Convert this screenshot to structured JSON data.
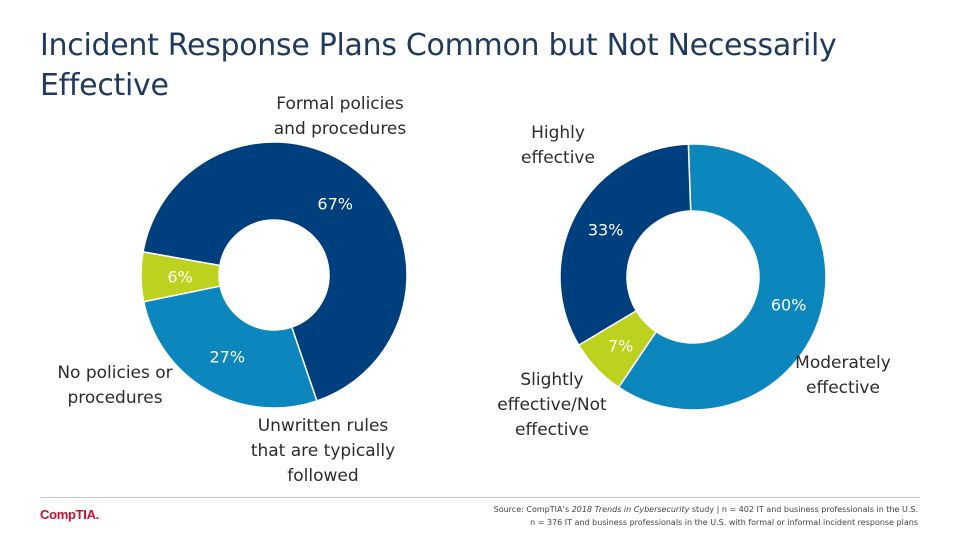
{
  "title": "Incident Response Plans Common but Not Necessarily Effective",
  "colors": {
    "dark_blue": "#003f7d",
    "mid_blue": "#0b87bd",
    "lime": "#bcd21e"
  },
  "chart_data": [
    {
      "type": "pie",
      "donut": true,
      "slices": [
        {
          "name": "Formal policies\nand procedures",
          "value": 67,
          "label": "67%",
          "color": "#003f7d"
        },
        {
          "name": "Unwritten rules\nthat are typically\nfollowed",
          "value": 27,
          "label": "27%",
          "color": "#0b87bd"
        },
        {
          "name": "No policies or\nprocedures",
          "value": 6,
          "label": "6%",
          "color": "#bcd21e"
        }
      ]
    },
    {
      "type": "pie",
      "donut": true,
      "slices": [
        {
          "name": "Moderately\neffective",
          "value": 60,
          "label": "60%",
          "color": "#0b87bd"
        },
        {
          "name": "Slightly\neffective/Not\neffective",
          "value": 7,
          "label": "7%",
          "color": "#bcd21e"
        },
        {
          "name": "Highly\neffective",
          "value": 33,
          "label": "33%",
          "color": "#003f7d"
        }
      ]
    }
  ],
  "footer": {
    "logo": "CompTIA.",
    "source_prefix": "Source: CompTIA’s ",
    "source_title": "2018 Trends in Cybersecurity",
    "source_suffix": " study | n = 402 IT and business professionals in the U.S.",
    "source_line2": "n = 376 IT and business professionals in the U.S. with formal or informal incident response plans"
  }
}
